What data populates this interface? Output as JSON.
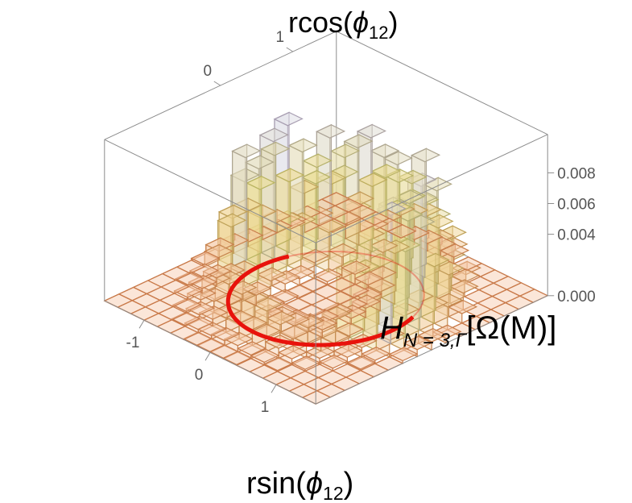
{
  "chart_data": {
    "type": "bar3d-histogram",
    "xlabel": {
      "base": "rsin(",
      "symbol": "ϕ",
      "sub": "12",
      "close": ")"
    },
    "ylabel": {
      "base": "rcos(",
      "symbol": "ϕ",
      "sub": "12",
      "close": ")"
    },
    "zlabel": {
      "main": "H",
      "sub": "N = 3,Γ",
      "tail": "[Ω(M)]"
    },
    "x_ticks": [
      "-1",
      "0",
      "1"
    ],
    "y_ticks": [
      "0",
      "1"
    ],
    "z_ticks": [
      "0.000",
      "0.004",
      "0.006",
      "0.008"
    ],
    "zlim": [
      0,
      0.0105
    ],
    "grid_range": [
      -1.6,
      1.6
    ],
    "grid_size": 16,
    "peak_height": 0.0098,
    "ring_radius": 1.0,
    "ring_color": "#e8130c",
    "color_low": "#f6c7a8",
    "color_mid": "#ecdc8e",
    "color_high": "#d9dcf3",
    "edge_low": "#c97a4a",
    "edge_mid": "#b9b45f",
    "edge_high": "#a59abf"
  }
}
